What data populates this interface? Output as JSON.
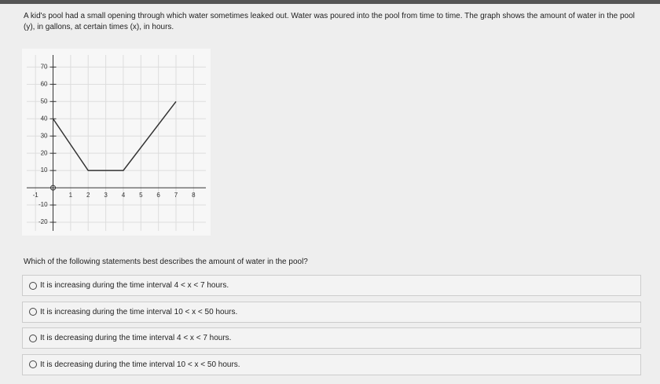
{
  "question_intro": "A kid's pool had a small opening through which water sometimes leaked out. Water was poured into the pool from time to time. The graph shows the amount of water in the pool (y), in gallons, at certain times (x), in hours.",
  "graph": {
    "type": "line",
    "x": [
      0,
      2,
      4,
      7
    ],
    "values": [
      40,
      10,
      10,
      50
    ],
    "color": "#333333",
    "xlim": [
      -1.5,
      8.7
    ],
    "ylim": [
      -25,
      77
    ],
    "xticks": [
      -1,
      1,
      2,
      3,
      4,
      5,
      6,
      7,
      8
    ],
    "yticks": [
      70,
      60,
      50,
      40,
      30,
      20,
      10,
      -10,
      -20
    ],
    "grid": true
  },
  "question": "Which of the following statements best describes the amount of water in the pool?",
  "options": [
    "It is increasing during the time interval 4 < x < 7 hours.",
    "It is increasing during the time interval 10 < x < 50 hours.",
    "It is decreasing during the time interval 4 < x < 7 hours.",
    "It is decreasing during the time interval 10 < x < 50 hours."
  ]
}
